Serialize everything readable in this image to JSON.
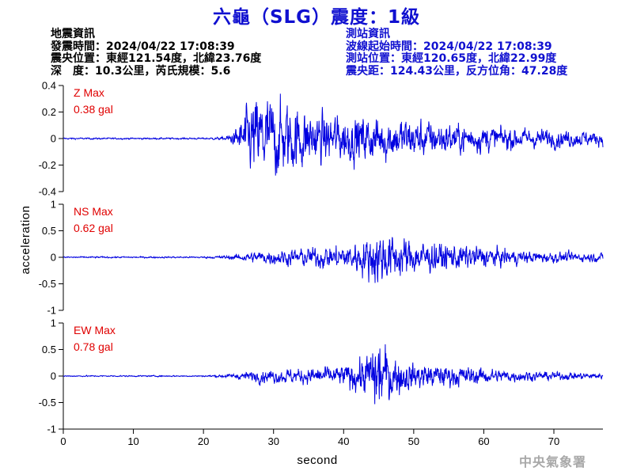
{
  "header": {
    "title": "六龜（SLG）震度：1級"
  },
  "quake_info": {
    "heading": "地震資訊",
    "time": "發震時間：2024/04/22 17:08:39",
    "epicenter": "震央位置：東經121.54度，北緯23.76度",
    "depth_magnitude": "深　度：10.3公里，芮氏規模：5.6"
  },
  "station_info": {
    "heading": "測站資訊",
    "wave_start": "波線起始時間：2024/04/22 17:08:39",
    "location": "測站位置：東經120.65度，北緯22.99度",
    "distance": "震央距：124.43公里，反方位角：47.28度"
  },
  "footer": {
    "agency": "中央氣象署"
  },
  "colors": {
    "title": "#1010d0",
    "trace": "#0000e0",
    "peak_label": "#e00000",
    "footer": "#a8a8a8"
  },
  "chart_data": {
    "type": "line",
    "xlabel": "second",
    "ylabel": "acceleration",
    "xlim": [
      0,
      77
    ],
    "xticks": [
      0,
      10,
      20,
      30,
      40,
      50,
      60,
      70
    ],
    "x_tick_labels": [
      "0",
      "10",
      "20",
      "30",
      "40",
      "50",
      "60",
      "70"
    ],
    "grid": false,
    "panels": [
      {
        "name": "Z",
        "max_label": "Z Max",
        "max_value": "0.38 gal",
        "ylim": [
          -0.4,
          0.4
        ],
        "yticks": [
          -0.4,
          -0.2,
          0,
          0.2,
          0.4
        ],
        "y_tick_labels": [
          "-0.4",
          "-0.2",
          "0",
          "0.2",
          "0.4"
        ],
        "envelope": {
          "x": [
            0,
            20,
            23,
            24.5,
            26,
            28,
            30,
            33,
            36,
            40,
            45,
            50,
            55,
            60,
            65,
            70,
            77
          ],
          "y": [
            0.006,
            0.006,
            0.012,
            0.06,
            0.22,
            0.34,
            0.3,
            0.26,
            0.2,
            0.18,
            0.17,
            0.15,
            0.12,
            0.1,
            0.08,
            0.07,
            0.05
          ]
        }
      },
      {
        "name": "NS",
        "max_label": "NS Max",
        "max_value": "0.62 gal",
        "ylim": [
          -1,
          1
        ],
        "yticks": [
          -1,
          -0.5,
          0,
          0.5,
          1
        ],
        "y_tick_labels": [
          "-1",
          "-0.5",
          "0",
          "0.5",
          "1"
        ],
        "envelope": {
          "x": [
            0,
            20,
            24,
            26,
            28,
            32,
            36,
            40,
            43,
            45,
            48,
            50,
            55,
            60,
            65,
            70,
            77
          ],
          "y": [
            0.015,
            0.015,
            0.04,
            0.08,
            0.12,
            0.15,
            0.2,
            0.24,
            0.35,
            0.55,
            0.4,
            0.32,
            0.26,
            0.2,
            0.13,
            0.1,
            0.08
          ]
        }
      },
      {
        "name": "EW",
        "max_label": "EW Max",
        "max_value": "0.78 gal",
        "ylim": [
          -1,
          1
        ],
        "yticks": [
          -1,
          -0.5,
          0,
          0.5,
          1
        ],
        "y_tick_labels": [
          "-1",
          "-0.5",
          "0",
          "0.5",
          "1"
        ],
        "envelope": {
          "x": [
            0,
            20,
            24,
            26,
            28,
            32,
            36,
            40,
            43,
            45,
            47,
            50,
            55,
            60,
            65,
            70,
            77
          ],
          "y": [
            0.012,
            0.012,
            0.04,
            0.08,
            0.12,
            0.14,
            0.16,
            0.2,
            0.36,
            0.72,
            0.4,
            0.26,
            0.2,
            0.15,
            0.1,
            0.08,
            0.05
          ]
        }
      }
    ]
  }
}
